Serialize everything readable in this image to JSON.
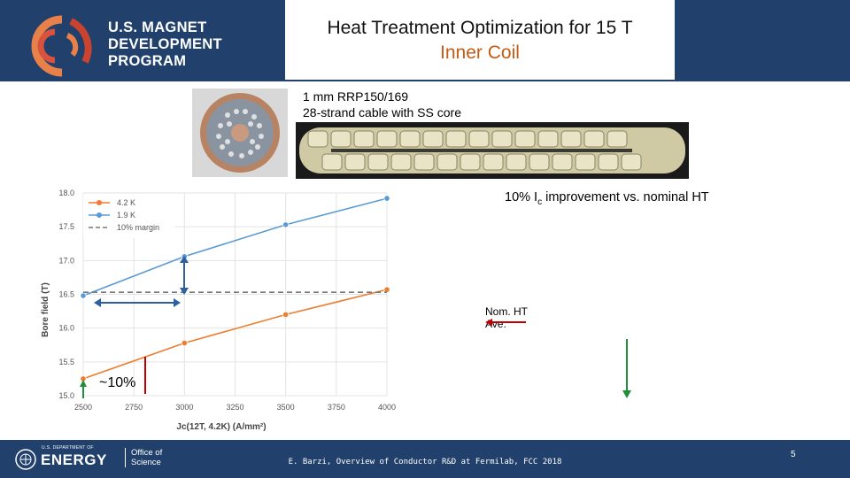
{
  "header": {
    "logo_lines": [
      "U.S. MAGNET",
      "DEVELOPMENT",
      "PROGRAM"
    ],
    "title": "Heat Treatment Optimization for 15 T",
    "subtitle": "Inner Coil"
  },
  "cable": {
    "line1": "1 mm RRP150/169",
    "line2": "28-strand cable with SS core"
  },
  "annotations": {
    "improvement_prefix": "10% I",
    "improvement_sub": "c",
    "improvement_suffix": " improvement vs. nominal HT",
    "nom_ht": "Nom. HT",
    "ave": "Ave.",
    "approx_10": "~10%"
  },
  "footer": {
    "doe_small": "U.S. DEPARTMENT OF",
    "doe_energy": "ENERGY",
    "office_line1": "Office of",
    "office_line2": "Science",
    "credit": "E. Barzi, Overview of Conductor R&D at Fermilab, FCC 2018",
    "page": "5"
  },
  "colors": {
    "brand_navy": "#21406b",
    "accent_orange": "#c55a11",
    "series_orange": "#ed7d31",
    "series_blue": "#5b9bd5"
  },
  "chart_data": {
    "type": "line",
    "title": "",
    "xlabel": "Jc(12T, 4.2K) (A/mm²)",
    "ylabel": "Bore field (T)",
    "xlim": [
      2500,
      4000
    ],
    "ylim": [
      15.0,
      18.0
    ],
    "xticks": [
      2500,
      2750,
      3000,
      3250,
      3500,
      3750,
      4000
    ],
    "yticks": [
      "15.0",
      "15.5",
      "16.0",
      "16.5",
      "17.0",
      "17.5",
      "18.0"
    ],
    "legend": [
      "4.2 K",
      "1.9 K",
      "10% margin"
    ],
    "series": [
      {
        "name": "4.2 K",
        "x": [
          2500,
          3000,
          3500,
          4000
        ],
        "values": [
          15.25,
          15.78,
          16.2,
          16.57
        ]
      },
      {
        "name": "1.9 K",
        "x": [
          2500,
          3000,
          3500,
          4000
        ],
        "values": [
          16.48,
          17.06,
          17.53,
          17.92
        ]
      },
      {
        "name": "10% margin",
        "x": [
          2500,
          4000
        ],
        "values": [
          16.53,
          16.53
        ]
      }
    ]
  }
}
